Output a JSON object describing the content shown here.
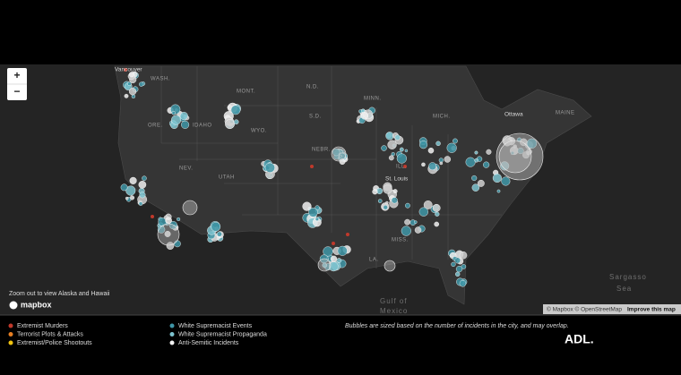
{
  "map": {
    "zoom_in": "+",
    "zoom_out": "−",
    "labels": [
      "Vancouver",
      "WASH.",
      "MONT.",
      "N.D.",
      "MINN.",
      "S.D.",
      "ORE.",
      "IDAHO",
      "WYO.",
      "NEBR.",
      "MICH.",
      "Ottawa",
      "MAINE",
      "NEV.",
      "UTAH",
      "ILL.",
      "St. Louis",
      "MISS.",
      "LA.",
      "Gulf of",
      "Mexico",
      "Sargasso",
      "Sea"
    ],
    "note": "Zoom out to view Alaska and Hawaii",
    "logo": "mapbox",
    "attribution": {
      "text": "© Mapbox © OpenStreetMap",
      "link": "Improve this map"
    }
  },
  "legend": {
    "items": [
      {
        "label": "Extremist Murders",
        "color": "#c0392b"
      },
      {
        "label": "Terrorist Plots & Attacks",
        "color": "#e67e22"
      },
      {
        "label": "Extremist/Police Shootouts",
        "color": "#f1c40f"
      },
      {
        "label": "White Supremacist Events",
        "color": "#3e95a6"
      },
      {
        "label": "White Supremacist Propaganda",
        "color": "#7cc3cf"
      },
      {
        "label": "Anti-Semitic Incidents",
        "color": "#f2f2f2"
      }
    ],
    "note": "Bubbles are sized based on the number of incidents in the city, and may overlap."
  },
  "logo": "ADL."
}
